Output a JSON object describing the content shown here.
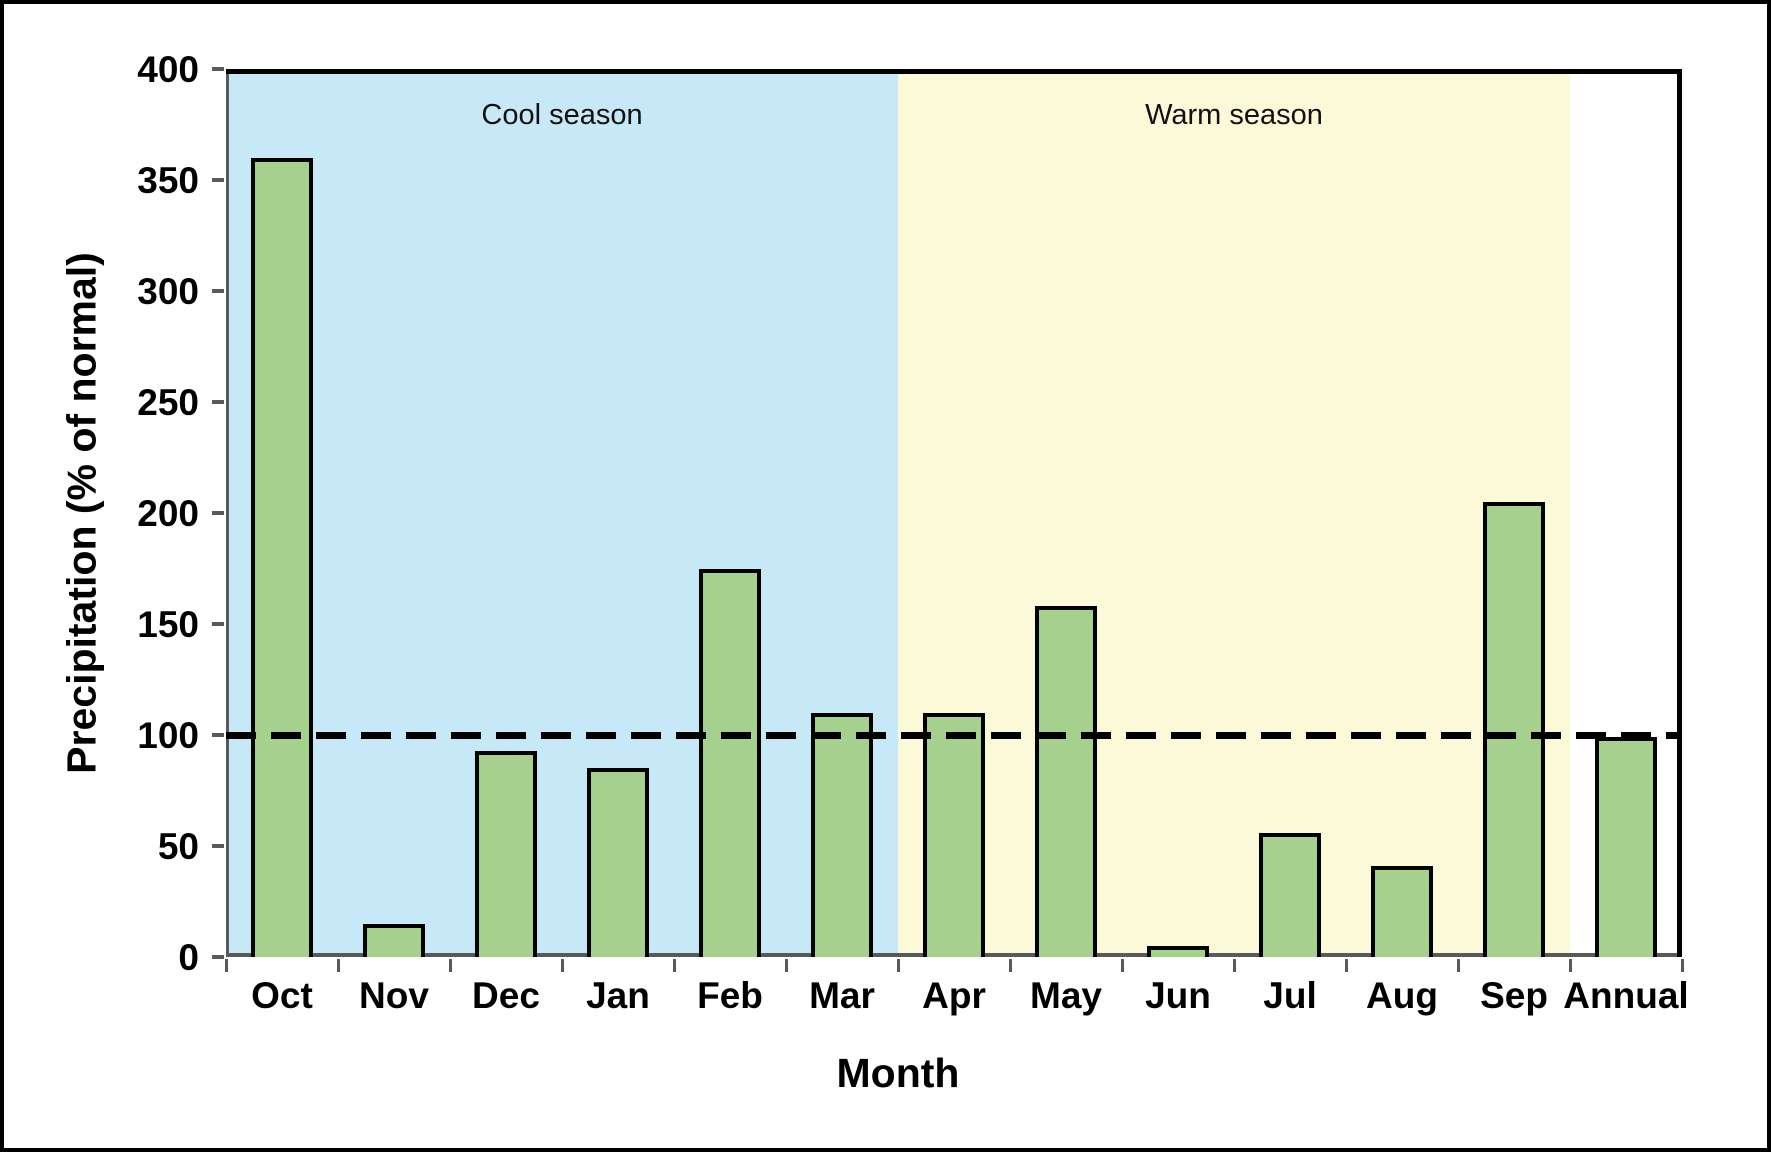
{
  "figure": {
    "background": "#ffffff",
    "border_color": "#000000"
  },
  "chart_data": {
    "type": "bar",
    "title": "",
    "xlabel": "Month",
    "ylabel": "Precipitation (% of normal)",
    "categories": [
      "Oct",
      "Nov",
      "Dec",
      "Jan",
      "Feb",
      "Mar",
      "Apr",
      "May",
      "Jun",
      "Jul",
      "Aug",
      "Sep",
      "Annual"
    ],
    "values": [
      360,
      15,
      93,
      85,
      175,
      110,
      110,
      158,
      5,
      56,
      41,
      205,
      99
    ],
    "ylim": [
      0,
      400
    ],
    "yticks": [
      0,
      50,
      100,
      150,
      200,
      250,
      300,
      350,
      400
    ],
    "grid": false,
    "legend": "none",
    "reference_line": {
      "value": 100,
      "style": "dashed",
      "color": "#000000"
    },
    "season_bands": [
      {
        "label": "Cool season",
        "from": "Oct",
        "to": "Mar",
        "color": "#c7e8f7"
      },
      {
        "label": "Warm season",
        "from": "Apr",
        "to": "Sep",
        "color": "#fcf9d8"
      }
    ],
    "bar_style": {
      "fill": "#a5d08d",
      "border": "#000000"
    },
    "axis_color": "#58595b"
  }
}
